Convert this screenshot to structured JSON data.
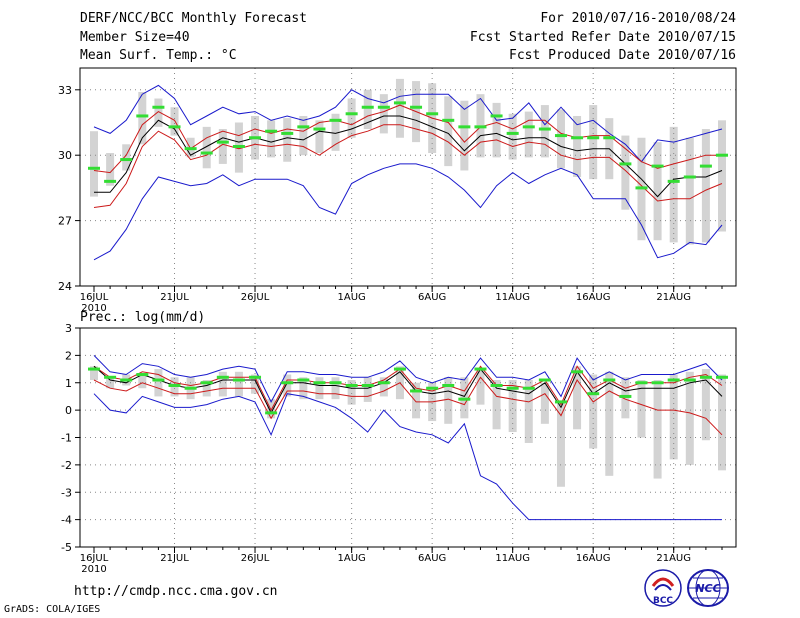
{
  "header": {
    "title": "DERF/NCC/BCC Monthly Forecast",
    "member_size": "Member Size=40",
    "variable": "Mean Surf. Temp.: °C",
    "for_range": "For 2010/07/16-2010/08/24",
    "fcst_started": "Fcst Started Refer Date 2010/07/15",
    "fcst_produced": "Fcst Produced Date 2010/07/16"
  },
  "footer": {
    "url": "http://cmdp.ncc.cma.gov.cn",
    "credit": "GrADS: COLA/IGES",
    "logo1_text": "BCC",
    "logo2_text": "NCC"
  },
  "colors": {
    "box": "#d3d3d3",
    "median": "#33dd33",
    "max_min": "#1a1acc",
    "mean": "#000000",
    "spread": "#cc1a1a",
    "grid": "#888888"
  },
  "chart_data": [
    {
      "type": "box-line",
      "title": "",
      "ylabel": "Mean Surf. Temp.: °C",
      "ylim": [
        24,
        34
      ],
      "yticks": [
        24,
        27,
        30,
        33
      ],
      "xlabel": "",
      "xticks": [
        {
          "day": 0,
          "label": "16JUL",
          "sub": "2010"
        },
        {
          "day": 5,
          "label": "21JUL"
        },
        {
          "day": 10,
          "label": "26JUL"
        },
        {
          "day": 16,
          "label": "1AUG"
        },
        {
          "day": 21,
          "label": "6AUG"
        },
        {
          "day": 26,
          "label": "11AUG"
        },
        {
          "day": 31,
          "label": "16AUG"
        },
        {
          "day": 36,
          "label": "21AUG"
        }
      ],
      "days": 40,
      "box_low": [
        28.1,
        28.6,
        29.3,
        30.5,
        31.3,
        30.9,
        29.9,
        29.4,
        29.6,
        29.2,
        29.8,
        29.9,
        29.7,
        30.0,
        30.1,
        30.2,
        30.8,
        31.2,
        31.0,
        30.8,
        30.6,
        30.1,
        29.5,
        29.3,
        29.9,
        29.9,
        29.8,
        29.9,
        29.9,
        29.4,
        29.0,
        28.9,
        28.9,
        27.5,
        26.1,
        26.1,
        26.0,
        25.9,
        26.0,
        26.5
      ],
      "box_high": [
        31.1,
        30.1,
        30.5,
        32.9,
        32.6,
        32.2,
        30.8,
        31.3,
        31.2,
        31.5,
        31.8,
        31.6,
        31.7,
        31.8,
        31.6,
        31.9,
        32.6,
        33.0,
        32.8,
        33.5,
        33.4,
        33.3,
        32.7,
        32.5,
        32.8,
        32.4,
        31.9,
        32.0,
        32.3,
        32.1,
        31.8,
        32.3,
        31.7,
        30.9,
        30.8,
        30.6,
        31.3,
        30.8,
        31.2,
        31.6
      ],
      "median": [
        29.4,
        28.8,
        29.8,
        31.8,
        32.2,
        31.3,
        30.3,
        30.1,
        30.6,
        30.4,
        30.8,
        31.1,
        31.0,
        31.3,
        31.2,
        31.6,
        31.9,
        32.2,
        32.2,
        32.4,
        32.2,
        31.9,
        31.6,
        31.3,
        31.3,
        31.8,
        31.0,
        31.3,
        31.2,
        30.9,
        30.8,
        30.8,
        30.8,
        29.6,
        28.5,
        29.5,
        28.8,
        29.0,
        29.5,
        30.0
      ],
      "series": [
        {
          "name": "max",
          "color": "#1a1acc",
          "values": [
            31.3,
            31.0,
            31.6,
            32.8,
            33.2,
            32.6,
            31.4,
            31.8,
            32.2,
            31.9,
            32.0,
            31.6,
            31.8,
            31.6,
            31.8,
            32.2,
            33.0,
            32.6,
            32.4,
            32.7,
            32.8,
            32.8,
            32.8,
            32.1,
            32.6,
            31.6,
            31.7,
            32.4,
            31.4,
            32.2,
            31.4,
            31.6,
            31.0,
            30.5,
            29.7,
            30.7,
            30.6,
            30.8,
            31.0,
            31.2
          ]
        },
        {
          "name": "spread_high",
          "color": "#cc1a1a",
          "values": [
            29.3,
            29.2,
            30.0,
            31.4,
            32.0,
            31.6,
            30.3,
            30.8,
            31.1,
            30.9,
            31.2,
            31.0,
            31.2,
            31.1,
            31.5,
            31.6,
            31.4,
            31.8,
            32.0,
            32.3,
            32.0,
            31.7,
            31.5,
            30.6,
            31.3,
            31.5,
            31.2,
            31.6,
            31.6,
            31.0,
            30.8,
            30.9,
            30.9,
            30.3,
            29.7,
            29.4,
            29.6,
            29.8,
            30.0,
            30.0
          ]
        },
        {
          "name": "mean",
          "color": "#000000",
          "values": [
            28.3,
            28.3,
            29.2,
            30.8,
            31.6,
            31.2,
            30.0,
            30.4,
            30.8,
            30.6,
            30.8,
            30.6,
            30.8,
            30.7,
            31.1,
            31.0,
            31.2,
            31.5,
            31.8,
            31.8,
            31.6,
            31.3,
            31.0,
            30.2,
            30.9,
            31.0,
            30.7,
            30.8,
            30.8,
            30.4,
            30.2,
            30.3,
            30.3,
            29.6,
            28.9,
            28.1,
            28.9,
            29.0,
            29.0,
            29.3
          ]
        },
        {
          "name": "spread_low",
          "color": "#cc1a1a",
          "values": [
            27.6,
            27.7,
            28.7,
            30.4,
            31.1,
            30.7,
            29.8,
            30.0,
            30.5,
            30.3,
            30.5,
            30.4,
            30.5,
            30.4,
            30.0,
            30.5,
            30.9,
            31.1,
            31.4,
            31.4,
            31.2,
            31.0,
            30.6,
            30.0,
            30.6,
            30.7,
            30.4,
            30.6,
            30.5,
            30.0,
            29.8,
            29.9,
            29.9,
            29.3,
            28.6,
            27.9,
            28.0,
            28.0,
            28.4,
            28.7
          ]
        },
        {
          "name": "min",
          "color": "#1a1acc",
          "values": [
            25.2,
            25.6,
            26.6,
            28.0,
            29.0,
            28.8,
            28.6,
            28.7,
            29.1,
            28.6,
            28.9,
            28.9,
            28.9,
            28.6,
            27.6,
            27.3,
            28.7,
            29.1,
            29.4,
            29.6,
            29.6,
            29.4,
            29.0,
            28.4,
            27.6,
            28.6,
            29.2,
            28.7,
            29.1,
            29.4,
            29.1,
            28.0,
            28.0,
            28.0,
            26.8,
            25.3,
            25.5,
            26.0,
            25.9,
            26.8
          ]
        }
      ]
    },
    {
      "type": "box-line",
      "title": "",
      "ylabel": "Prec.: log(mm/d)",
      "ylim": [
        -5,
        3
      ],
      "yticks": [
        -5,
        -4,
        -3,
        -2,
        -1,
        0,
        1,
        2,
        3
      ],
      "xlabel": "",
      "xticks": [
        {
          "day": 0,
          "label": "16JUL",
          "sub": "2010"
        },
        {
          "day": 5,
          "label": "21JUL"
        },
        {
          "day": 10,
          "label": "26JUL"
        },
        {
          "day": 16,
          "label": "1AUG"
        },
        {
          "day": 21,
          "label": "6AUG"
        },
        {
          "day": 26,
          "label": "11AUG"
        },
        {
          "day": 31,
          "label": "16AUG"
        },
        {
          "day": 36,
          "label": "21AUG"
        }
      ],
      "days": 40,
      "box_low": [
        1.1,
        0.8,
        0.9,
        0.8,
        0.5,
        0.5,
        0.4,
        0.5,
        0.5,
        0.5,
        0.6,
        -0.3,
        0.5,
        0.4,
        0.4,
        0.4,
        0.2,
        0.3,
        0.5,
        0.4,
        -0.3,
        -0.4,
        -0.5,
        -0.3,
        0.2,
        -0.7,
        -0.8,
        -1.2,
        -0.5,
        -2.8,
        -0.7,
        -1.4,
        -2.4,
        -0.3,
        -1.0,
        -2.5,
        -1.8,
        -2.0,
        -1.1,
        -2.2
      ],
      "box_high": [
        1.6,
        1.2,
        1.3,
        1.3,
        1.5,
        1.2,
        1.2,
        1.1,
        1.4,
        1.4,
        1.3,
        0.4,
        1.3,
        1.2,
        1.2,
        1.2,
        1.1,
        1.2,
        1.2,
        1.6,
        1.0,
        1.0,
        1.2,
        1.2,
        1.5,
        1.1,
        1.1,
        1.1,
        1.0,
        0.3,
        1.6,
        1.3,
        1.4,
        1.2,
        1.1,
        1.1,
        1.3,
        1.4,
        1.5,
        1.3
      ],
      "median": [
        1.5,
        1.2,
        1.1,
        1.3,
        1.1,
        0.9,
        0.8,
        1.0,
        1.2,
        1.1,
        1.2,
        -0.1,
        1.0,
        1.1,
        1.0,
        1.0,
        0.9,
        0.9,
        1.0,
        1.5,
        0.7,
        0.8,
        0.9,
        0.4,
        1.5,
        0.9,
        0.8,
        0.8,
        1.1,
        0.3,
        1.4,
        0.6,
        1.1,
        0.5,
        1.0,
        1.0,
        1.1,
        1.1,
        1.2,
        1.2
      ],
      "series": [
        {
          "name": "max",
          "color": "#1a1acc",
          "values": [
            2.0,
            1.4,
            1.3,
            1.7,
            1.6,
            1.3,
            1.2,
            1.3,
            1.5,
            1.6,
            1.5,
            0.3,
            1.4,
            1.4,
            1.3,
            1.3,
            1.2,
            1.2,
            1.4,
            1.8,
            1.2,
            1.0,
            1.2,
            1.1,
            1.9,
            1.2,
            1.2,
            1.1,
            1.4,
            0.5,
            1.9,
            1.1,
            1.4,
            1.1,
            1.3,
            1.3,
            1.3,
            1.5,
            1.7,
            1.1
          ]
        },
        {
          "name": "spread_high",
          "color": "#cc1a1a",
          "values": [
            1.6,
            1.2,
            1.1,
            1.4,
            1.3,
            1.0,
            0.9,
            1.0,
            1.2,
            1.2,
            1.2,
            0.0,
            1.1,
            1.1,
            1.0,
            1.0,
            0.9,
            0.9,
            1.1,
            1.5,
            0.8,
            0.7,
            0.9,
            0.7,
            1.6,
            0.9,
            0.9,
            0.8,
            1.1,
            0.2,
            1.6,
            0.8,
            1.1,
            0.8,
            1.0,
            1.0,
            1.0,
            1.2,
            1.3,
            0.9
          ]
        },
        {
          "name": "mean",
          "color": "#000000",
          "values": [
            1.6,
            1.1,
            1.0,
            1.3,
            1.1,
            0.9,
            0.8,
            0.9,
            1.1,
            1.1,
            1.1,
            -0.1,
            1.0,
            1.0,
            0.9,
            0.9,
            0.8,
            0.8,
            1.0,
            1.4,
            0.7,
            0.6,
            0.7,
            0.5,
            1.5,
            0.8,
            0.7,
            0.6,
            1.0,
            0.1,
            1.4,
            0.6,
            1.0,
            0.7,
            0.8,
            0.8,
            0.8,
            1.0,
            1.1,
            0.5
          ]
        },
        {
          "name": "spread_low",
          "color": "#cc1a1a",
          "values": [
            1.1,
            0.8,
            0.7,
            1.0,
            0.8,
            0.6,
            0.6,
            0.7,
            0.8,
            0.8,
            0.8,
            -0.3,
            0.7,
            0.7,
            0.6,
            0.6,
            0.5,
            0.5,
            0.7,
            1.0,
            0.3,
            0.3,
            0.4,
            0.2,
            1.2,
            0.5,
            0.4,
            0.3,
            0.6,
            -0.2,
            1.1,
            0.3,
            0.7,
            0.4,
            0.2,
            0.0,
            0.0,
            -0.1,
            -0.3,
            -0.9
          ]
        },
        {
          "name": "min",
          "color": "#1a1acc",
          "values": [
            0.6,
            0.0,
            -0.1,
            0.5,
            0.3,
            0.1,
            0.1,
            0.2,
            0.4,
            0.5,
            0.3,
            -0.9,
            0.6,
            0.5,
            0.3,
            0.1,
            -0.3,
            -0.8,
            0.0,
            -0.6,
            -0.8,
            -0.9,
            -1.2,
            -0.5,
            -2.4,
            -2.7,
            -3.4,
            -4.0,
            -4.0,
            -4.0,
            -4.0,
            -4.0,
            -4.0,
            -4.0,
            -4.0,
            -4.0,
            -4.0,
            -4.0,
            -4.0,
            -4.0
          ]
        }
      ]
    }
  ]
}
